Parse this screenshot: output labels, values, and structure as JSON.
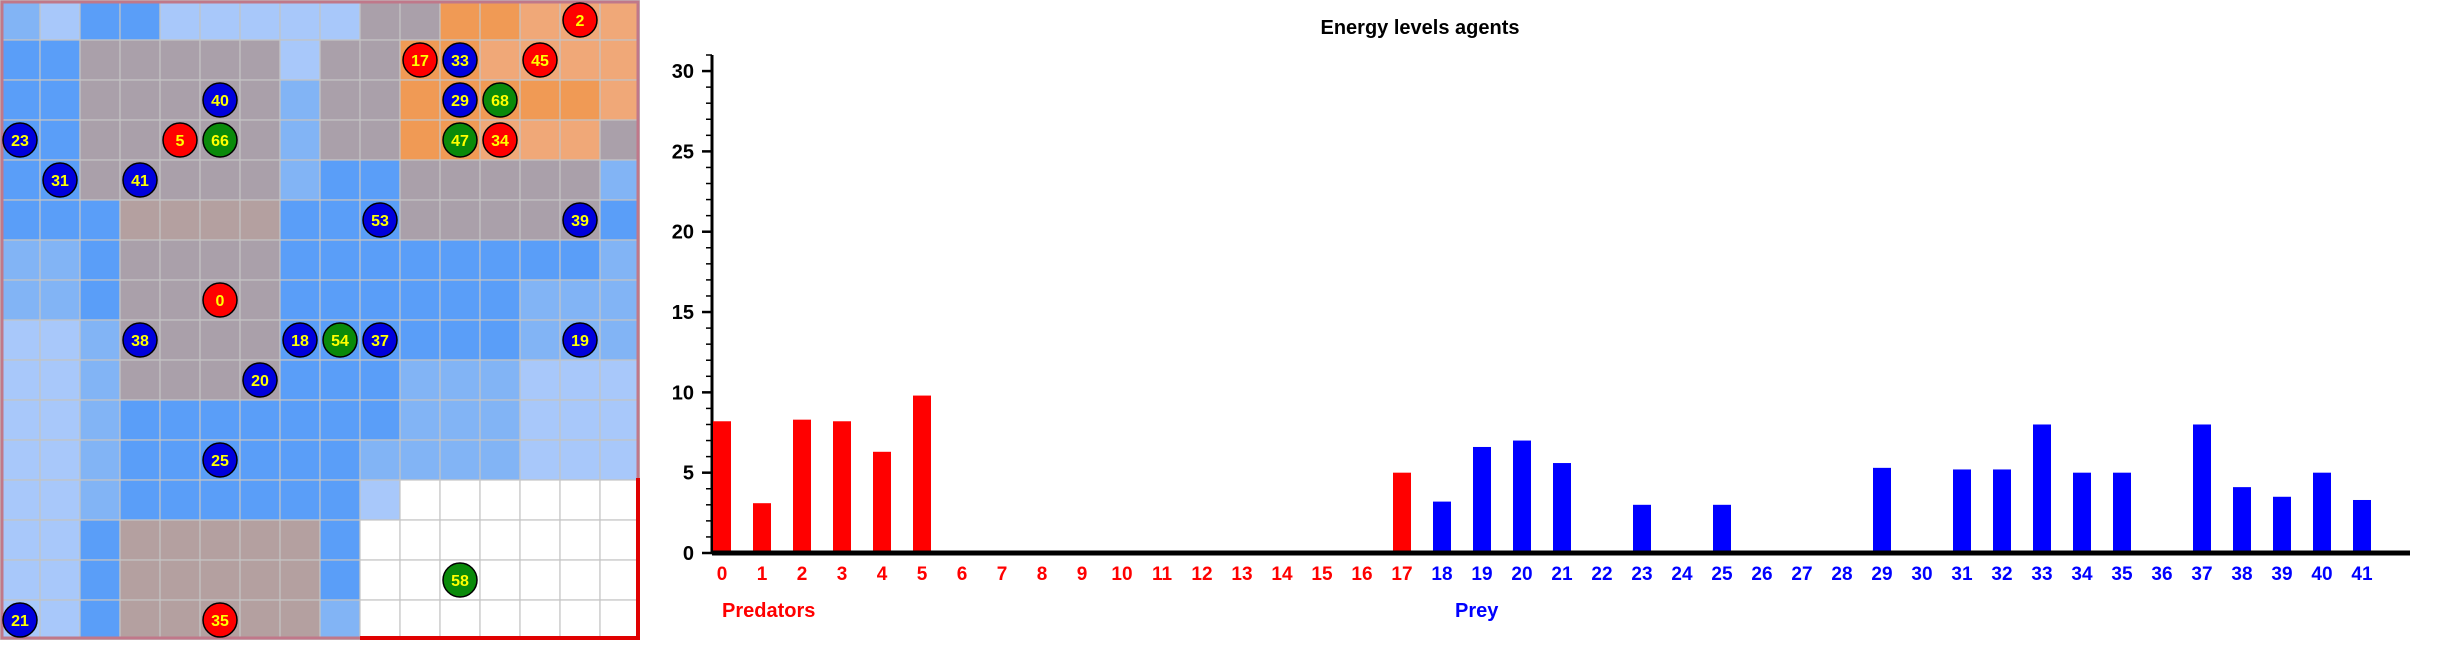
{
  "chart_data": {
    "type": "bar",
    "title": "Energy levels agents",
    "ylim": [
      0,
      31
    ],
    "yticks": [
      0,
      5,
      10,
      15,
      20,
      25,
      30
    ],
    "categories": [
      0,
      1,
      2,
      3,
      4,
      5,
      6,
      7,
      8,
      9,
      10,
      11,
      12,
      13,
      14,
      15,
      16,
      17,
      18,
      19,
      20,
      21,
      22,
      23,
      24,
      25,
      26,
      27,
      28,
      29,
      30,
      31,
      32,
      33,
      34,
      35,
      36,
      37,
      38,
      39,
      40,
      41
    ],
    "predator_count": 18,
    "values": [
      8.2,
      3.1,
      8.3,
      8.2,
      6.3,
      9.8,
      0,
      0,
      0,
      0,
      0,
      0,
      0,
      0,
      0,
      0,
      0,
      5.0,
      3.2,
      6.6,
      7.0,
      5.6,
      0,
      3.0,
      0,
      3.0,
      0,
      0,
      0,
      5.3,
      0,
      5.2,
      5.2,
      8.0,
      5.0,
      5.0,
      0,
      8.0,
      4.1,
      3.5,
      5.0,
      3.3
    ],
    "group_labels": [
      "Predators",
      "Prey"
    ],
    "colors": {
      "predator": "#ff0000",
      "prey": "#0000ff",
      "axis": "#000000"
    }
  },
  "grid": {
    "cols": 16,
    "rows": 16,
    "colors": {
      "B": "#a8c8fa",
      "M": "#82b4f5",
      "D": "#5a9ef8",
      "G": "#aaa0aa",
      "T": "#b4a0a0",
      "O": "#f09a55",
      "S": "#f0a878",
      "W": "#ffffff"
    },
    "cells": [
      "MBDDBBBBBGGOOSSS",
      "DDGGGGGBGGOOSSSS",
      "DDGGGGGMGGOOOOOS",
      "DDGGGGGMGGOOSSSG",
      "DDGGGGGMDDGGGGGM",
      "DDDTTTTDDDGGGGGD",
      "MMDGGGGDDDDDDDDM",
      "MMDGGGGDDDDDDMMM",
      "BBMGGGGDDDDDDMMM",
      "BBMGGGGDDDMMMBBB",
      "BBMDDDDDDDMMMBBB",
      "BBMDDDDDDMMMMBBB",
      "BBMDDDDDDBWWWWWW",
      "BBDTTTTTDWWWWWWW",
      "BBDTTTTTDWWWWWWW",
      "BBDTTTTTMWWWWWWW"
    ],
    "agents": [
      {
        "id": "2",
        "col": 14.5,
        "row": 0.5,
        "kind": "predator"
      },
      {
        "id": "17",
        "col": 10.5,
        "row": 1.5,
        "kind": "predator"
      },
      {
        "id": "33",
        "col": 11.5,
        "row": 1.5,
        "kind": "prey"
      },
      {
        "id": "45",
        "col": 13.5,
        "row": 1.5,
        "kind": "predator"
      },
      {
        "id": "40",
        "col": 5.5,
        "row": 2.5,
        "kind": "prey"
      },
      {
        "id": "29",
        "col": 11.5,
        "row": 2.5,
        "kind": "prey"
      },
      {
        "id": "68",
        "col": 12.5,
        "row": 2.5,
        "kind": "plant"
      },
      {
        "id": "23",
        "col": 0.5,
        "row": 3.5,
        "kind": "prey"
      },
      {
        "id": "5",
        "col": 4.5,
        "row": 3.5,
        "kind": "predator"
      },
      {
        "id": "66",
        "col": 5.5,
        "row": 3.5,
        "kind": "plant"
      },
      {
        "id": "47",
        "col": 11.5,
        "row": 3.5,
        "kind": "plant"
      },
      {
        "id": "34",
        "col": 12.5,
        "row": 3.5,
        "kind": "predator"
      },
      {
        "id": "31",
        "col": 1.5,
        "row": 4.5,
        "kind": "prey"
      },
      {
        "id": "41",
        "col": 3.5,
        "row": 4.5,
        "kind": "prey"
      },
      {
        "id": "53",
        "col": 9.5,
        "row": 5.5,
        "kind": "prey"
      },
      {
        "id": "39",
        "col": 14.5,
        "row": 5.5,
        "kind": "prey"
      },
      {
        "id": "0",
        "col": 5.5,
        "row": 7.5,
        "kind": "predator"
      },
      {
        "id": "38",
        "col": 3.5,
        "row": 8.5,
        "kind": "prey"
      },
      {
        "id": "18",
        "col": 7.5,
        "row": 8.5,
        "kind": "prey"
      },
      {
        "id": "54",
        "col": 8.5,
        "row": 8.5,
        "kind": "plant"
      },
      {
        "id": "37",
        "col": 9.5,
        "row": 8.5,
        "kind": "prey"
      },
      {
        "id": "19",
        "col": 14.5,
        "row": 8.5,
        "kind": "prey"
      },
      {
        "id": "20",
        "col": 6.5,
        "row": 9.5,
        "kind": "prey"
      },
      {
        "id": "25",
        "col": 5.5,
        "row": 11.5,
        "kind": "prey"
      },
      {
        "id": "58",
        "col": 11.5,
        "row": 14.5,
        "kind": "plant"
      },
      {
        "id": "21",
        "col": 0.5,
        "row": 15.5,
        "kind": "prey"
      },
      {
        "id": "35",
        "col": 5.5,
        "row": 15.5,
        "kind": "predator"
      }
    ],
    "agent_colors": {
      "predator": "#ff0000",
      "prey": "#0000dd",
      "plant": "#0a8a0a",
      "text": "#ffff00",
      "outline": "#000000"
    }
  }
}
